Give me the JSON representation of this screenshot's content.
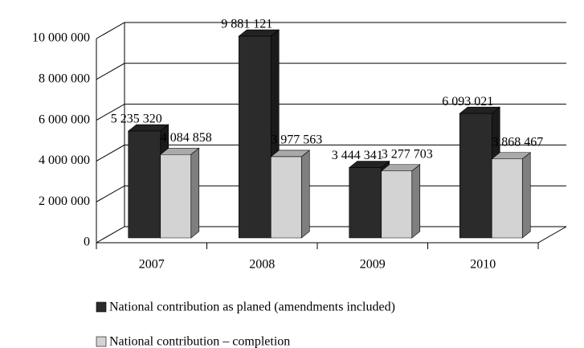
{
  "chart_data": {
    "type": "bar3d",
    "categories": [
      "2007",
      "2008",
      "2009",
      "2010"
    ],
    "series": [
      {
        "name": "National contribution as planed (amendments included)",
        "color": "#2b2b2b",
        "values": [
          5235320,
          9881121,
          3444341,
          6093021
        ],
        "value_labels": [
          "5 235 320",
          "9 881 121",
          "3 444 341",
          "6 093 021"
        ]
      },
      {
        "name": "National contribution – completion",
        "color": "#d3d3d3",
        "values": [
          4084858,
          3977563,
          3277703,
          3868467
        ],
        "value_labels": [
          "4 084 858",
          "3 977 563",
          "3 277 703",
          "3 868 467"
        ]
      }
    ],
    "ylim": [
      0,
      10000000
    ],
    "yticks": [
      0,
      {
        "value": 2000000,
        "label": "2 000 000"
      },
      {
        "value": 4000000,
        "label": "4 000 000"
      },
      {
        "value": 6000000,
        "label": "6 000 000"
      },
      {
        "value": 8000000,
        "label": "8 000 000"
      },
      {
        "value": 10000000,
        "label": "10 000 000"
      }
    ],
    "grid": true
  }
}
